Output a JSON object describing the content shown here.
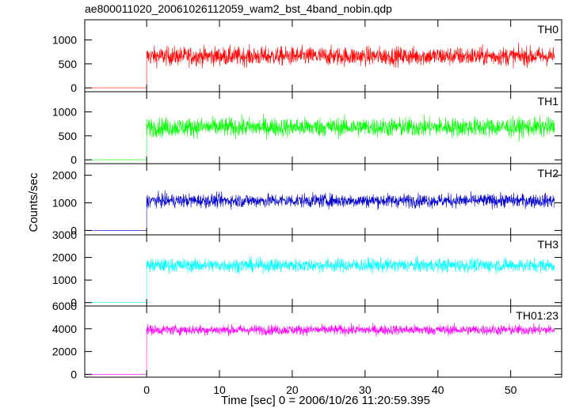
{
  "chart_data": {
    "type": "line",
    "title": "ae800011020_20061026112059_wam2_bst_4band_nobin.qdp",
    "xlabel": "Time [sec] 0 = 2006/10/26 11:20:59.395",
    "ylabel": "Counts/sec",
    "xlim": [
      -8.5,
      57
    ],
    "x_ticks": [
      0,
      10,
      20,
      30,
      40,
      50
    ],
    "x_tick_labels": [
      "0",
      "10",
      "20",
      "30",
      "40",
      "50"
    ],
    "grid": false,
    "panels": [
      {
        "name": "TH0",
        "color": "#ff0000",
        "ylim": [
          -80,
          1420
        ],
        "y_ticks": [
          0,
          500,
          1000
        ],
        "y_tick_labels": [
          "0",
          "500",
          "1000"
        ],
        "pre_level": 0,
        "mean": 660,
        "spread": 350,
        "x_start": -8.5,
        "onset": 0,
        "x_end": 56
      },
      {
        "name": "TH1",
        "color": "#00ff00",
        "ylim": [
          -80,
          1420
        ],
        "y_ticks": [
          0,
          500,
          1000
        ],
        "y_tick_labels": [
          "0",
          "500",
          "1000"
        ],
        "pre_level": 0,
        "mean": 680,
        "spread": 360,
        "x_start": -8.5,
        "onset": 0,
        "x_end": 56
      },
      {
        "name": "TH2",
        "color": "#0000cc",
        "ylim": [
          -160,
          2420
        ],
        "y_ticks": [
          0,
          1000,
          2000
        ],
        "y_tick_labels": [
          "0",
          "1000",
          "2000"
        ],
        "pre_level": 0,
        "mean": 1080,
        "spread": 450,
        "x_start": -8.5,
        "onset": 0,
        "x_end": 56
      },
      {
        "name": "TH3",
        "color": "#00ffff",
        "ylim": [
          -150,
          3000
        ],
        "y_ticks": [
          0,
          1000,
          2000,
          3000
        ],
        "y_tick_labels": [
          "0",
          "1000",
          "2000",
          "3000"
        ],
        "pre_level": 0,
        "mean": 1650,
        "spread": 550,
        "x_start": -8.5,
        "onset": 0,
        "x_end": 56
      },
      {
        "name": "TH0123",
        "label": "TH01:23",
        "color": "#ff00ff",
        "ylim": [
          -250,
          6000
        ],
        "y_ticks": [
          0,
          2000,
          4000,
          6000
        ],
        "y_tick_labels": [
          "0",
          "2000",
          "4000",
          "6000"
        ],
        "pre_level": 0,
        "mean": 3900,
        "spread": 800,
        "x_start": -8.5,
        "onset": 0,
        "x_end": 56
      }
    ]
  }
}
